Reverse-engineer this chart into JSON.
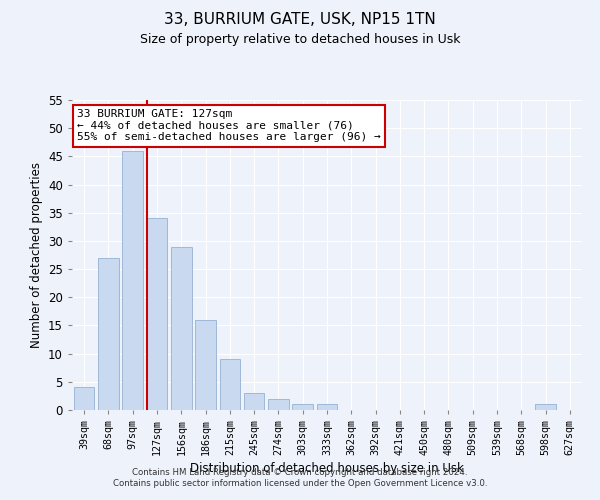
{
  "title_line1": "33, BURRIUM GATE, USK, NP15 1TN",
  "title_line2": "Size of property relative to detached houses in Usk",
  "xlabel": "Distribution of detached houses by size in Usk",
  "ylabel": "Number of detached properties",
  "categories": [
    "39sqm",
    "68sqm",
    "97sqm",
    "127sqm",
    "156sqm",
    "186sqm",
    "215sqm",
    "245sqm",
    "274sqm",
    "303sqm",
    "333sqm",
    "362sqm",
    "392sqm",
    "421sqm",
    "450sqm",
    "480sqm",
    "509sqm",
    "539sqm",
    "568sqm",
    "598sqm",
    "627sqm"
  ],
  "values": [
    4,
    27,
    46,
    34,
    29,
    16,
    9,
    3,
    2,
    1,
    1,
    0,
    0,
    0,
    0,
    0,
    0,
    0,
    0,
    1,
    0
  ],
  "bar_color": "#c9d9f0",
  "bar_edge_color": "#a0b8d8",
  "vline_index": 3,
  "vline_color": "#cc0000",
  "annotation_text": "33 BURRIUM GATE: 127sqm\n← 44% of detached houses are smaller (76)\n55% of semi-detached houses are larger (96) →",
  "annotation_box_color": "#ffffff",
  "annotation_box_edge_color": "#cc0000",
  "ylim": [
    0,
    55
  ],
  "yticks": [
    0,
    5,
    10,
    15,
    20,
    25,
    30,
    35,
    40,
    45,
    50,
    55
  ],
  "background_color": "#eef2fb",
  "grid_color": "#ffffff",
  "footer_text": "Contains HM Land Registry data © Crown copyright and database right 2024.\nContains public sector information licensed under the Open Government Licence v3.0."
}
